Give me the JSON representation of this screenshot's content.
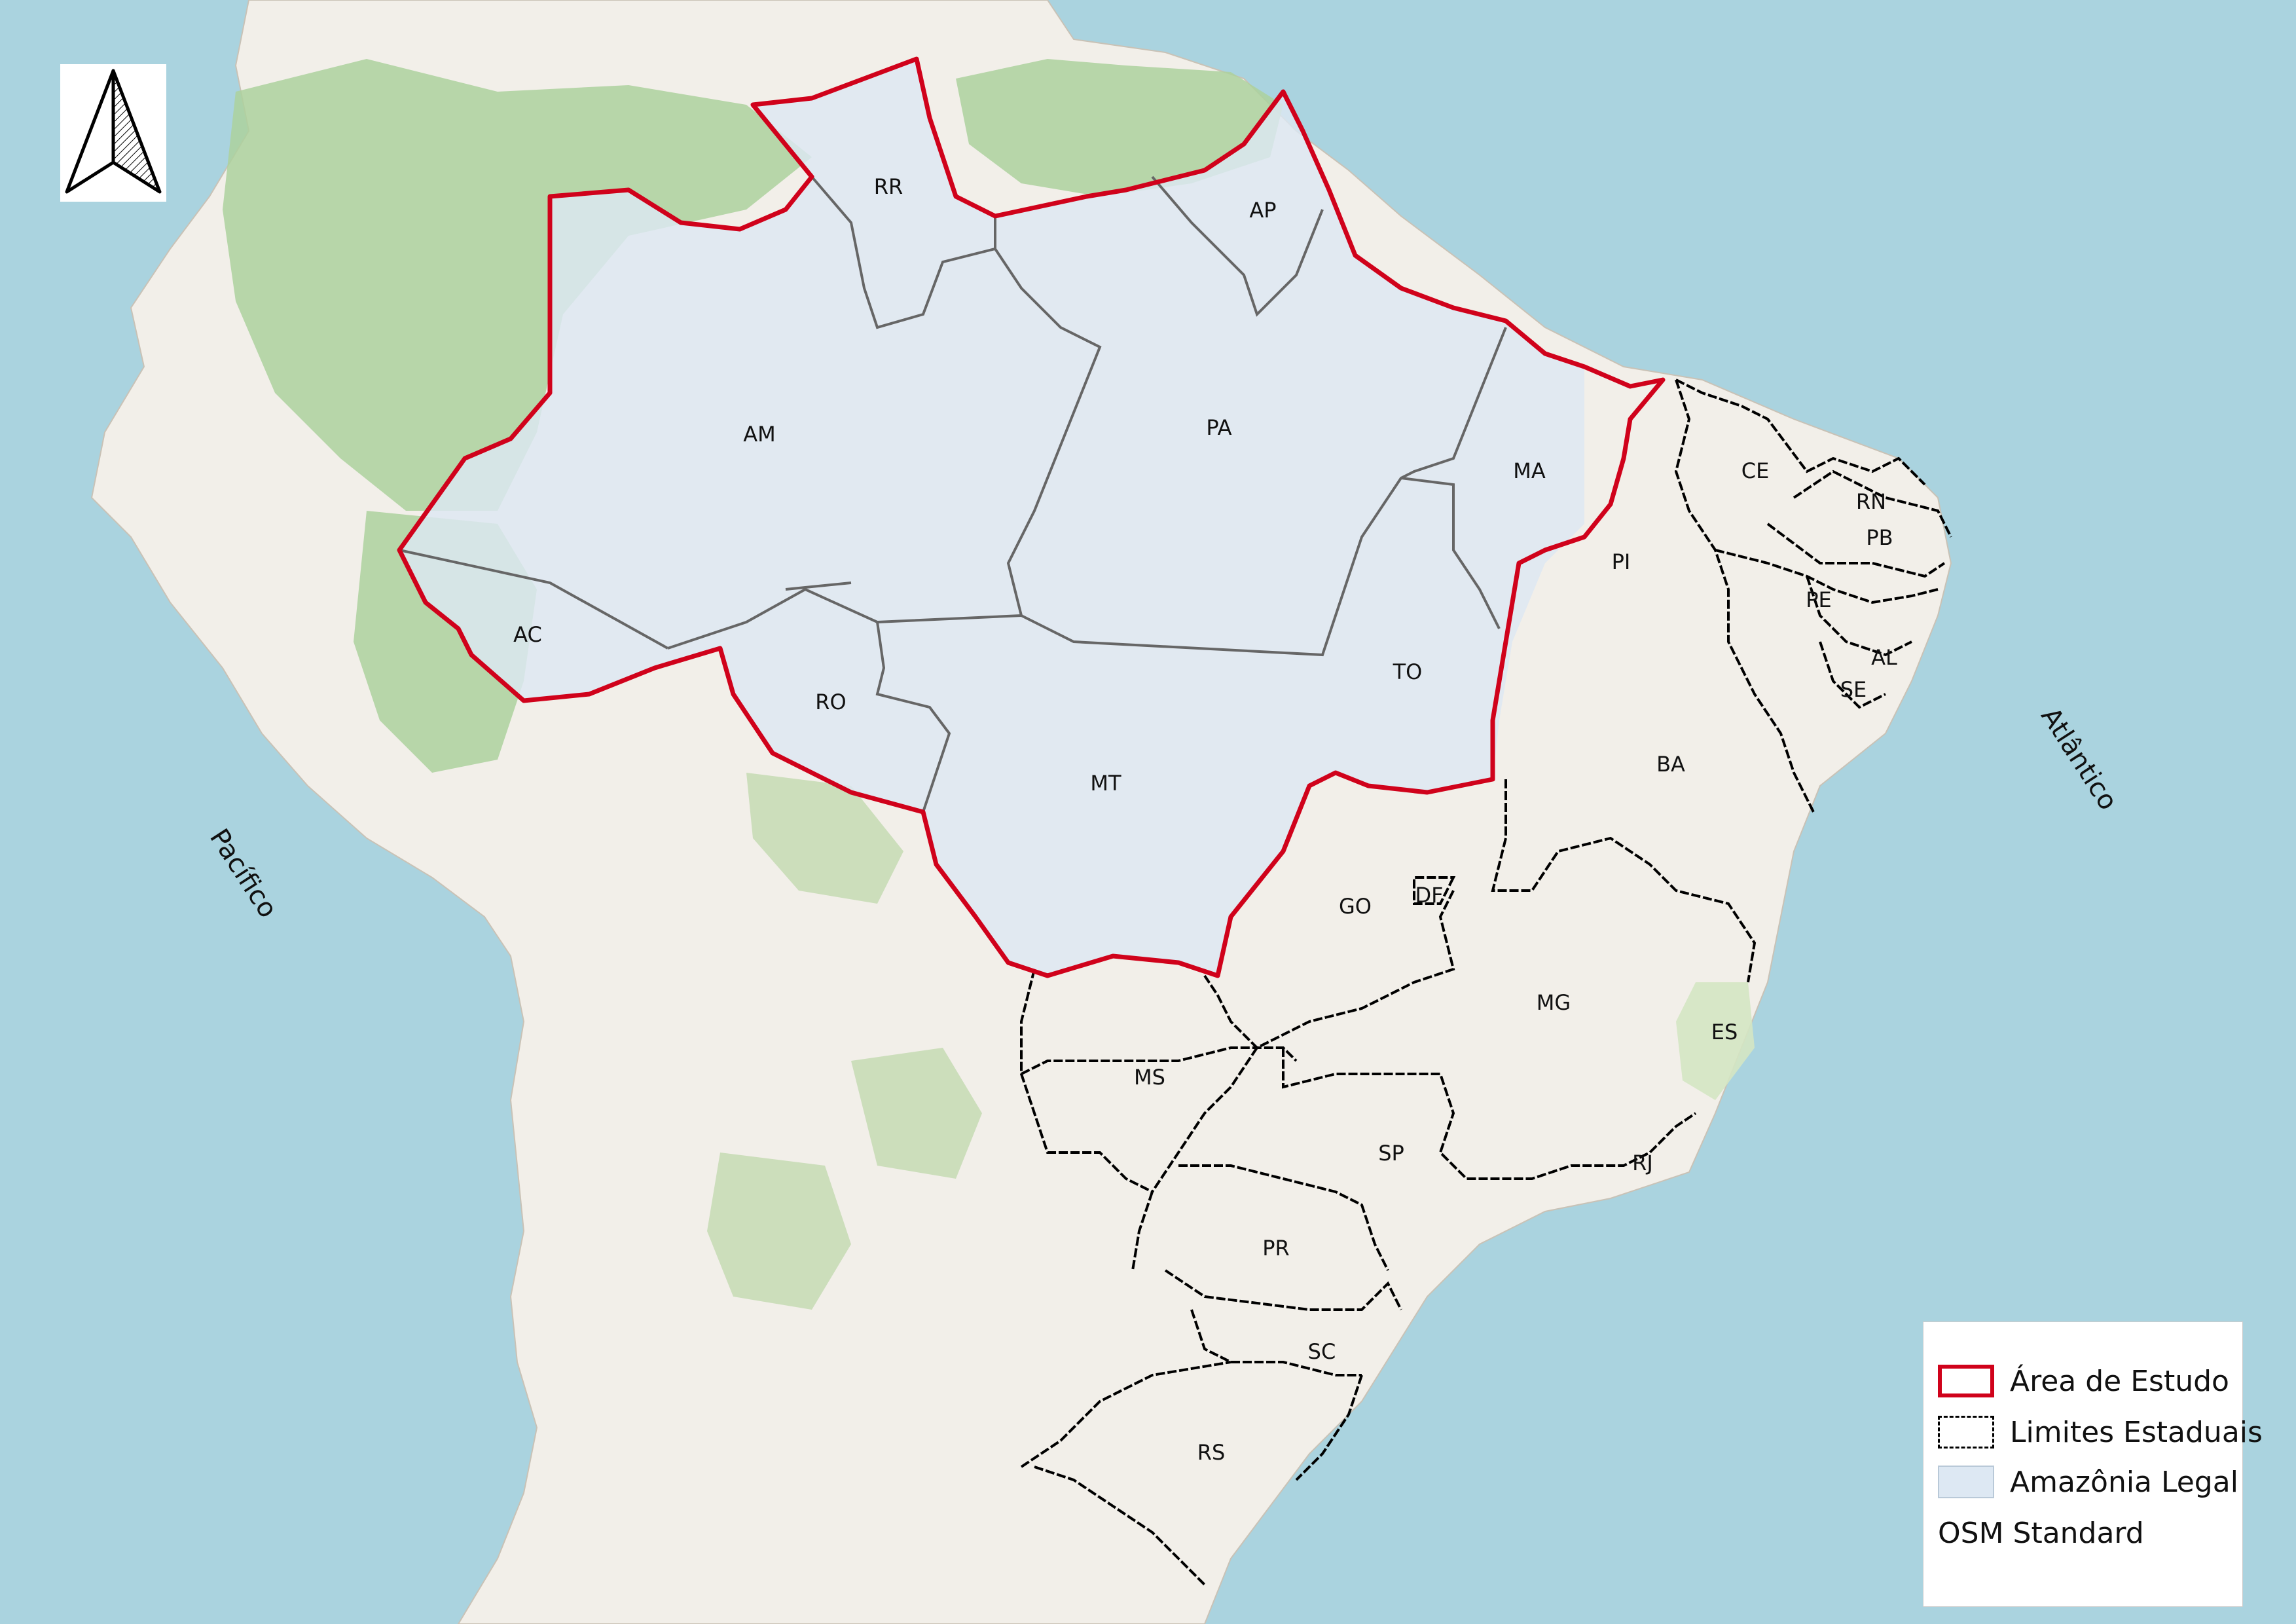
{
  "states": [
    {
      "code": "RR"
    },
    {
      "code": "AP"
    },
    {
      "code": "AM"
    },
    {
      "code": "PA"
    },
    {
      "code": "MA"
    },
    {
      "code": "CE"
    },
    {
      "code": "RN"
    },
    {
      "code": "PB"
    },
    {
      "code": "PI"
    },
    {
      "code": "PE"
    },
    {
      "code": "AC"
    },
    {
      "code": "AL"
    },
    {
      "code": "TO"
    },
    {
      "code": "SE"
    },
    {
      "code": "RO"
    },
    {
      "code": "BA"
    },
    {
      "code": "MT"
    },
    {
      "code": "GO"
    },
    {
      "code": "DF"
    },
    {
      "code": "MG"
    },
    {
      "code": "ES"
    },
    {
      "code": "MS"
    },
    {
      "code": "SP"
    },
    {
      "code": "RJ"
    },
    {
      "code": "PR"
    },
    {
      "code": "SC"
    },
    {
      "code": "RS"
    }
  ],
  "oceans": {
    "pacific": "Pacífico",
    "atlantic": "Atlântico"
  },
  "legend": {
    "study_area": "Área de Estudo",
    "state_limits": "Limites Estaduais",
    "legal_amazon": "Amazônia Legal",
    "basemap": "OSM Standard"
  },
  "colors": {
    "ocean": "#aad3df",
    "land": "#f2efe9",
    "forest": "#add19e",
    "legal_amazon_fill": "#dde8f3",
    "study_area_border": "#d0021b",
    "state_border": "#000000",
    "internal_border": "#666666"
  },
  "icons": {
    "north_arrow": "north-arrow-icon"
  }
}
